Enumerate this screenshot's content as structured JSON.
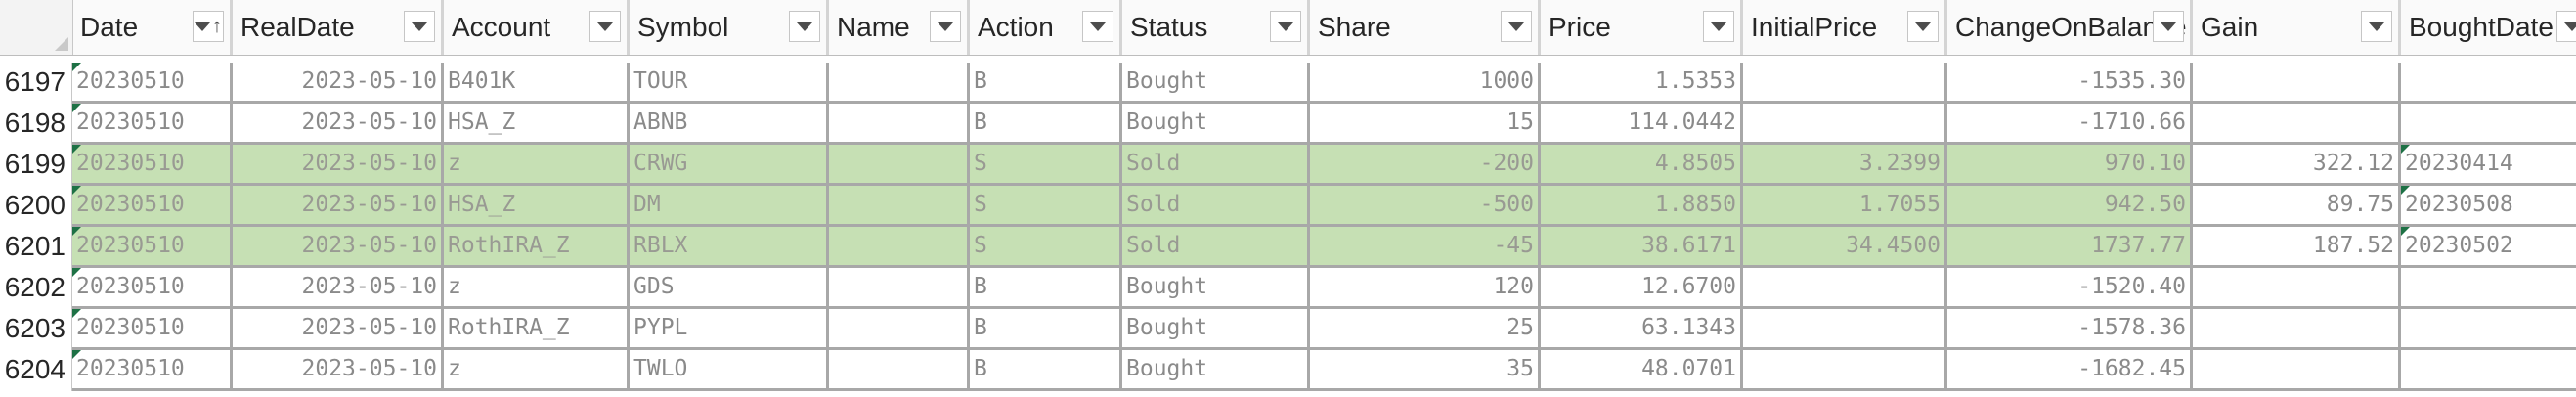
{
  "table": {
    "columns": [
      {
        "label": "Date",
        "sort": "asc"
      },
      {
        "label": "RealDate"
      },
      {
        "label": "Account"
      },
      {
        "label": "Symbol"
      },
      {
        "label": "Name"
      },
      {
        "label": "Action"
      },
      {
        "label": "Status"
      },
      {
        "label": "Share"
      },
      {
        "label": "Price"
      },
      {
        "label": "InitialPrice"
      },
      {
        "label": "ChangeOnBalance"
      },
      {
        "label": "Gain"
      },
      {
        "label": "BoughtDate"
      }
    ],
    "rows": [
      {
        "num": "6197",
        "highlight": false,
        "cells": [
          "20230510",
          "2023-05-10",
          "B401K",
          "TOUR",
          "",
          "B",
          "Bought",
          "1000",
          "1.5353",
          "",
          "-1535.30",
          "",
          ""
        ]
      },
      {
        "num": "6198",
        "highlight": false,
        "cells": [
          "20230510",
          "2023-05-10",
          "HSA_Z",
          "ABNB",
          "",
          "B",
          "Bought",
          "15",
          "114.0442",
          "",
          "-1710.66",
          "",
          ""
        ]
      },
      {
        "num": "6199",
        "highlight": true,
        "cells": [
          "20230510",
          "2023-05-10",
          "z",
          "CRWG",
          "",
          "S",
          "Sold",
          "-200",
          "4.8505",
          "3.2399",
          "970.10",
          "322.12",
          "20230414"
        ]
      },
      {
        "num": "6200",
        "highlight": true,
        "cells": [
          "20230510",
          "2023-05-10",
          "HSA_Z",
          "DM",
          "",
          "S",
          "Sold",
          "-500",
          "1.8850",
          "1.7055",
          "942.50",
          "89.75",
          "20230508"
        ]
      },
      {
        "num": "6201",
        "highlight": true,
        "cells": [
          "20230510",
          "2023-05-10",
          "RothIRA_Z",
          "RBLX",
          "",
          "S",
          "Sold",
          "-45",
          "38.6171",
          "34.4500",
          "1737.77",
          "187.52",
          "20230502"
        ]
      },
      {
        "num": "6202",
        "highlight": false,
        "cells": [
          "20230510",
          "2023-05-10",
          "z",
          "GDS",
          "",
          "B",
          "Bought",
          "120",
          "12.6700",
          "",
          "-1520.40",
          "",
          ""
        ]
      },
      {
        "num": "6203",
        "highlight": false,
        "cells": [
          "20230510",
          "2023-05-10",
          "RothIRA_Z",
          "PYPL",
          "",
          "B",
          "Bought",
          "25",
          "63.1343",
          "",
          "-1578.36",
          "",
          ""
        ]
      },
      {
        "num": "6204",
        "highlight": false,
        "cells": [
          "20230510",
          "2023-05-10",
          "z",
          "TWLO",
          "",
          "B",
          "Bought",
          "35",
          "48.0701",
          "",
          "-1682.45",
          "",
          ""
        ]
      }
    ]
  },
  "colors": {
    "sold_fill": "#c6e0b4",
    "error_triangle": "#1e7145"
  },
  "icons": {
    "filter": "chevron-down-icon",
    "sort": "sort-ascending-icon"
  }
}
